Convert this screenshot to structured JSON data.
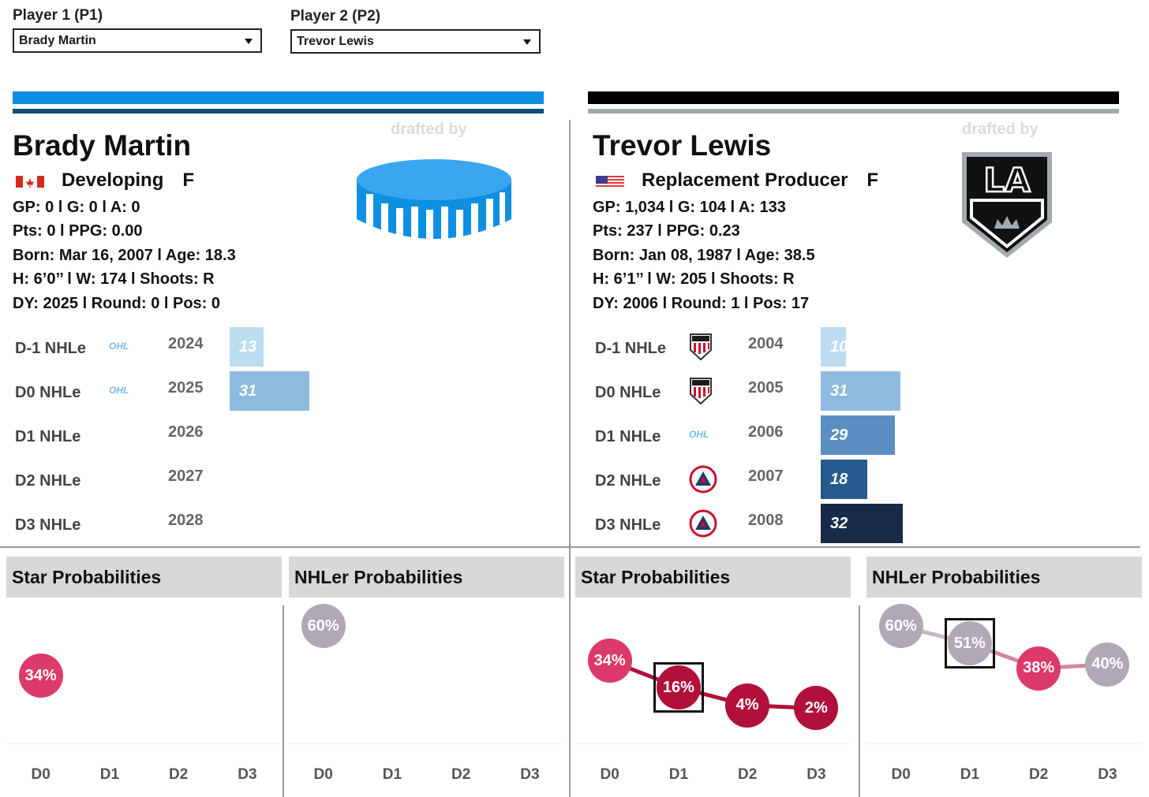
{
  "selectors": {
    "p1_label": "Player 1 (P1)",
    "p1_value": "Brady Martin",
    "p2_label": "Player 2 (P2)",
    "p2_value": "Trevor Lewis"
  },
  "p1": {
    "name": "Brady Martin",
    "status": "Developing",
    "position": "F",
    "flag": "canada-flag",
    "drafted_by": "drafted by",
    "team_logo": "puck-logo",
    "colors": {
      "primary": "#0d8fe2",
      "secondary": "#0f4f7a"
    },
    "stats": [
      "GP: 0 l G: 0 l A: 0",
      "Pts: 0 l PPG: 0.00",
      "Born: Mar 16, 2007 l Age: 18.3",
      "H: 6’0’’ l W: 174 l Shoots: R",
      "DY: 2025 l Round: 0 l Pos: 0"
    ],
    "nhle": [
      {
        "label": "D-1 NHLe",
        "league": "OHL",
        "year": "2024",
        "value": "13",
        "num": 13,
        "color": "#bcdcf2"
      },
      {
        "label": "D0 NHLe",
        "league": "OHL",
        "year": "2025",
        "value": "31",
        "num": 31,
        "color": "#8dbbdf"
      },
      {
        "label": "D1 NHLe",
        "league": "",
        "year": "2026",
        "value": "",
        "num": 0,
        "color": ""
      },
      {
        "label": "D2 NHLe",
        "league": "",
        "year": "2027",
        "value": "",
        "num": 0,
        "color": ""
      },
      {
        "label": "D3 NHLe",
        "league": "",
        "year": "2028",
        "value": "",
        "num": 0,
        "color": ""
      }
    ]
  },
  "p2": {
    "name": "Trevor Lewis",
    "status": "Replacement Producer",
    "position": "F",
    "flag": "usa-flag",
    "drafted_by": "drafted by",
    "team_logo": "la-kings-logo",
    "team_logo_text": "LA",
    "colors": {
      "primary": "#000000",
      "secondary": "#a2aaad"
    },
    "stats": [
      "GP: 1,034 l G: 104 l A: 133",
      "Pts: 237 l PPG: 0.23",
      "Born: Jan 08, 1987 l Age: 38.5",
      "H: 6’1’’ l W: 205 l Shoots: R",
      "DY: 2006 l Round: 1 l Pos: 17"
    ],
    "nhle": [
      {
        "label": "D-1 NHLe",
        "league": "USHL",
        "year": "2004",
        "value": "10",
        "num": 10,
        "color": "#bcdcf2"
      },
      {
        "label": "D0 NHLe",
        "league": "USHL",
        "year": "2005",
        "value": "31",
        "num": 31,
        "color": "#8dbbdf"
      },
      {
        "label": "D1 NHLe",
        "league": "OHL",
        "year": "2006",
        "value": "29",
        "num": 29,
        "color": "#5b8fc2"
      },
      {
        "label": "D2 NHLe",
        "league": "AHL",
        "year": "2007",
        "value": "18",
        "num": 18,
        "color": "#275a8c"
      },
      {
        "label": "D3 NHLe",
        "league": "AHL",
        "year": "2008",
        "value": "32",
        "num": 32,
        "color": "#172b48"
      }
    ]
  },
  "panels": {
    "star_title": "Star Probabilities",
    "nhler_title": "NHLer Probabilities",
    "x_labels": [
      "D0",
      "D1",
      "D2",
      "D3"
    ]
  },
  "chart_data": [
    {
      "type": "line",
      "title": "Star Probabilities",
      "player": "Brady Martin",
      "categories": [
        "D0",
        "D1",
        "D2",
        "D3"
      ],
      "values": [
        34,
        null,
        null,
        null
      ],
      "labels": [
        "34%",
        "",
        "",
        ""
      ],
      "ylim": [
        0,
        70
      ],
      "highlight": null
    },
    {
      "type": "line",
      "title": "NHLer Probabilities",
      "player": "Brady Martin",
      "categories": [
        "D0",
        "D1",
        "D2",
        "D3"
      ],
      "values": [
        60,
        null,
        null,
        null
      ],
      "labels": [
        "60%",
        "",
        "",
        ""
      ],
      "ylim": [
        0,
        70
      ],
      "highlight": null
    },
    {
      "type": "line",
      "title": "Star Probabilities",
      "player": "Trevor Lewis",
      "categories": [
        "D0",
        "D1",
        "D2",
        "D3"
      ],
      "values": [
        34,
        16,
        4,
        2
      ],
      "labels": [
        "34%",
        "16%",
        "4%",
        "2%"
      ],
      "ylim": [
        -20,
        70
      ],
      "highlight": "D1"
    },
    {
      "type": "line",
      "title": "NHLer Probabilities",
      "player": "Trevor Lewis",
      "categories": [
        "D0",
        "D1",
        "D2",
        "D3"
      ],
      "values": [
        60,
        51,
        38,
        40
      ],
      "labels": [
        "60%",
        "51%",
        "38%",
        "40%"
      ],
      "ylim": [
        0,
        70
      ],
      "highlight": "D1"
    }
  ]
}
